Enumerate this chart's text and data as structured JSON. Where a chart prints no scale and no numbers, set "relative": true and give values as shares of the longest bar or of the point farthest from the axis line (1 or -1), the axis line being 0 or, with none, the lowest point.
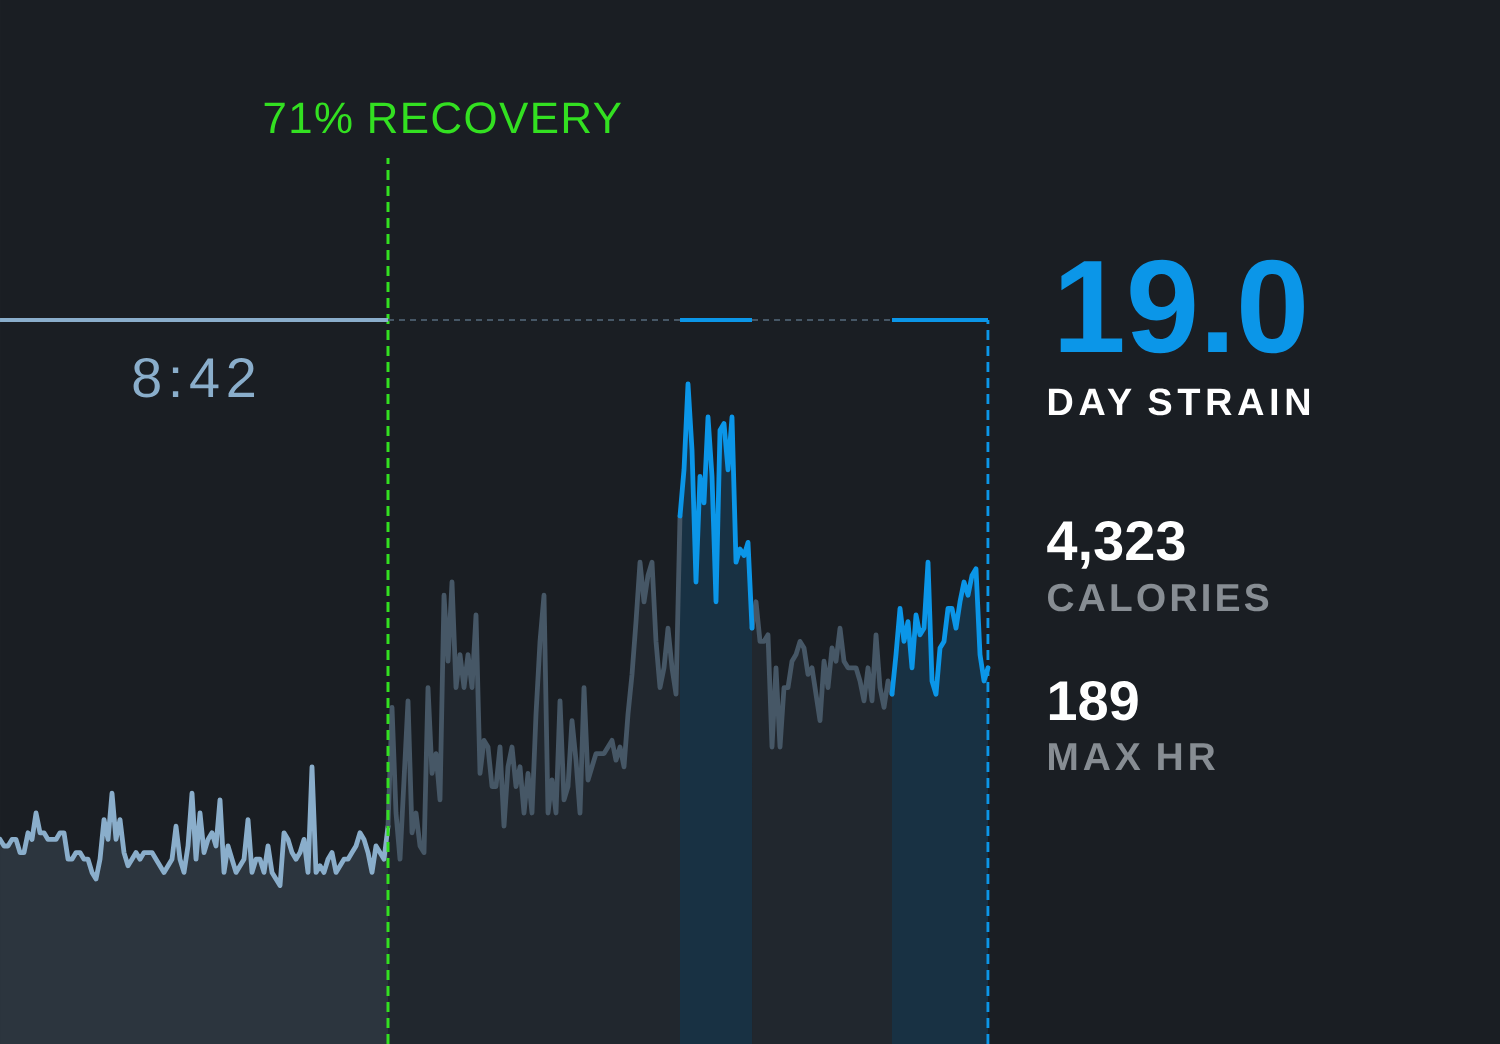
{
  "chart_data": [
    {
      "type": "area",
      "relative": true,
      "categories": [
        null,
        null,
        null,
        null,
        null,
        null,
        null,
        null,
        null,
        null,
        null,
        null,
        null,
        null,
        null,
        null,
        null,
        null,
        null,
        null,
        null,
        null,
        null,
        null,
        null,
        null,
        null,
        null,
        null,
        null,
        null,
        null,
        null,
        null,
        null,
        null,
        null,
        null,
        null,
        null,
        null,
        null,
        null,
        null,
        null,
        null,
        null,
        null,
        null,
        null,
        null,
        null,
        null,
        null,
        null,
        null,
        null,
        null,
        null,
        null,
        null,
        null,
        null,
        null,
        null,
        null,
        null,
        null,
        null,
        null,
        null,
        null,
        null,
        null,
        null,
        null,
        null,
        null,
        null,
        null,
        null,
        null,
        null,
        null,
        null,
        null,
        null,
        null,
        null,
        null,
        null,
        null,
        null,
        null,
        null,
        null,
        null,
        null,
        null,
        null,
        null,
        null,
        null,
        null,
        null,
        null,
        null,
        null,
        null,
        null,
        null,
        null,
        null,
        null,
        null,
        null,
        null,
        null,
        null,
        null,
        null,
        null,
        null,
        null,
        null,
        null,
        null,
        null,
        null,
        null,
        null,
        null,
        null,
        null,
        null,
        null,
        null,
        null,
        null,
        null,
        null,
        null,
        null,
        null,
        null,
        null,
        null,
        null,
        null,
        null,
        null,
        null,
        null,
        null,
        null,
        null,
        null,
        null,
        null,
        null,
        null,
        null,
        null,
        null,
        null,
        null,
        null,
        null,
        null,
        null,
        null,
        null,
        null,
        null,
        null,
        null,
        null,
        null,
        null,
        null,
        null,
        null,
        null,
        null,
        null,
        null,
        null,
        null,
        null,
        null,
        null,
        null,
        null,
        null,
        null,
        null,
        null,
        null,
        null,
        null,
        null,
        null,
        null,
        null,
        null,
        null,
        null,
        null,
        null,
        null,
        null,
        null,
        null,
        null,
        null,
        null,
        null,
        null,
        null,
        null,
        null,
        null,
        null,
        null,
        null,
        null,
        null,
        null,
        null,
        null,
        null,
        null,
        null,
        null,
        null,
        null,
        null,
        null,
        null,
        null,
        null,
        null,
        null,
        null,
        null,
        null,
        null,
        null
      ],
      "series": [
        {
          "color": "#8aaecb",
          "values": [
            0.31,
            0.3,
            0.3,
            0.31,
            0.31,
            0.29,
            0.29,
            0.32,
            0.31,
            0.35,
            0.32,
            0.32,
            0.31,
            0.31,
            0.31,
            0.32,
            0.32,
            0.28,
            0.28,
            0.29,
            0.29,
            0.28,
            0.28,
            0.26,
            0.25,
            0.28,
            0.34,
            0.31,
            0.38,
            0.31,
            0.34,
            0.29,
            0.27,
            0.28,
            0.29,
            0.28,
            0.29,
            0.29,
            0.29,
            0.28,
            0.27,
            0.26,
            0.27,
            0.28,
            0.33,
            0.28,
            0.26,
            0.3,
            0.38,
            0.28,
            0.35,
            0.29,
            0.31,
            0.32,
            0.3,
            0.37,
            0.26,
            0.3,
            0.28,
            0.26,
            0.27,
            0.28,
            0.34,
            0.26,
            0.28,
            0.28,
            0.26,
            0.3,
            0.26,
            0.25,
            0.24,
            0.32,
            0.31,
            0.29,
            0.28,
            0.29,
            0.31,
            0.26,
            0.42,
            0.26,
            0.27,
            0.26,
            0.28,
            0.29,
            0.26,
            0.27,
            0.28,
            0.28,
            0.29,
            0.3,
            0.32,
            0.31,
            0.29,
            0.26,
            0.3,
            0.29,
            0.28,
            0.33,
            null,
            null,
            null,
            null,
            null,
            null,
            null,
            null,
            null,
            null,
            null,
            null,
            null,
            null,
            null,
            null,
            null,
            null,
            null,
            null,
            null,
            null,
            null,
            null,
            null,
            null,
            null,
            null,
            null,
            null,
            null,
            null,
            null,
            null,
            null,
            null,
            null,
            null,
            null,
            null,
            null,
            null,
            null,
            null,
            null,
            null,
            null,
            null,
            null,
            null,
            null,
            null,
            null,
            null,
            null,
            null,
            null,
            null,
            null,
            null,
            null,
            null,
            null,
            null,
            null,
            null,
            null,
            null,
            null,
            null,
            null,
            null,
            null,
            null,
            null,
            null,
            null,
            null,
            null,
            null,
            null,
            null,
            null,
            null,
            null,
            null,
            null,
            null,
            null,
            null,
            null,
            null,
            null,
            null,
            null,
            null,
            null,
            null,
            null,
            null,
            null,
            null,
            null,
            null,
            null,
            null,
            null,
            null,
            null,
            null,
            null,
            null,
            null,
            null,
            null,
            null,
            null,
            null,
            null,
            null,
            null,
            null,
            null,
            null,
            null,
            null,
            null,
            null,
            null,
            null,
            null,
            null,
            null,
            null,
            null,
            null,
            null,
            null,
            null,
            null,
            null,
            null,
            null,
            null,
            null,
            null,
            null,
            null,
            null,
            null
          ]
        },
        {
          "color": "#465766",
          "values": [
            null,
            null,
            null,
            null,
            null,
            null,
            null,
            null,
            null,
            null,
            null,
            null,
            null,
            null,
            null,
            null,
            null,
            null,
            null,
            null,
            null,
            null,
            null,
            null,
            null,
            null,
            null,
            null,
            null,
            null,
            null,
            null,
            null,
            null,
            null,
            null,
            null,
            null,
            null,
            null,
            null,
            null,
            null,
            null,
            null,
            null,
            null,
            null,
            null,
            null,
            null,
            null,
            null,
            null,
            null,
            null,
            null,
            null,
            null,
            null,
            null,
            null,
            null,
            null,
            null,
            null,
            null,
            null,
            null,
            null,
            null,
            null,
            null,
            null,
            null,
            null,
            null,
            null,
            null,
            null,
            null,
            null,
            null,
            null,
            null,
            null,
            null,
            null,
            null,
            null,
            null,
            null,
            null,
            null,
            null,
            null,
            null,
            0.33,
            0.51,
            0.35,
            0.28,
            0.4,
            0.52,
            0.32,
            0.35,
            0.3,
            0.29,
            0.54,
            0.41,
            0.44,
            0.37,
            0.68,
            0.58,
            0.7,
            0.54,
            0.59,
            0.54,
            0.59,
            0.54,
            0.65,
            0.41,
            0.46,
            0.45,
            0.39,
            0.39,
            0.45,
            0.33,
            0.42,
            0.45,
            0.39,
            0.42,
            0.35,
            0.41,
            0.35,
            0.5,
            0.61,
            0.68,
            0.35,
            0.4,
            0.35,
            0.52,
            0.37,
            0.39,
            0.49,
            0.43,
            0.35,
            0.54,
            0.4,
            0.42,
            0.44,
            0.44,
            0.44,
            0.45,
            0.46,
            0.43,
            0.45,
            0.42,
            0.5,
            0.56,
            0.64,
            0.73,
            0.67,
            0.71,
            0.73,
            0.61,
            0.54,
            0.57,
            0.63,
            0.57,
            0.53,
            0.8,
            null,
            null,
            null,
            null,
            null,
            null,
            null,
            null,
            null,
            null,
            null,
            null,
            null,
            null,
            null,
            null,
            null,
            0.63,
            0.67,
            0.61,
            0.61,
            0.62,
            0.45,
            0.57,
            0.45,
            0.54,
            0.54,
            0.58,
            0.59,
            0.61,
            0.6,
            0.56,
            0.57,
            0.53,
            0.49,
            0.58,
            0.54,
            0.6,
            0.58,
            0.63,
            0.58,
            0.57,
            0.57,
            0.57,
            0.55,
            0.52,
            0.57,
            0.52,
            0.62,
            0.54,
            0.51,
            0.55,
            0.53,
            null,
            null,
            null,
            null,
            null,
            null,
            null,
            null,
            null,
            null,
            null,
            null,
            null,
            null,
            null,
            null,
            null,
            null,
            null,
            null,
            null,
            null,
            null,
            null
          ]
        },
        {
          "color": "#0b96e8",
          "values": [
            null,
            null,
            null,
            null,
            null,
            null,
            null,
            null,
            null,
            null,
            null,
            null,
            null,
            null,
            null,
            null,
            null,
            null,
            null,
            null,
            null,
            null,
            null,
            null,
            null,
            null,
            null,
            null,
            null,
            null,
            null,
            null,
            null,
            null,
            null,
            null,
            null,
            null,
            null,
            null,
            null,
            null,
            null,
            null,
            null,
            null,
            null,
            null,
            null,
            null,
            null,
            null,
            null,
            null,
            null,
            null,
            null,
            null,
            null,
            null,
            null,
            null,
            null,
            null,
            null,
            null,
            null,
            null,
            null,
            null,
            null,
            null,
            null,
            null,
            null,
            null,
            null,
            null,
            null,
            null,
            null,
            null,
            null,
            null,
            null,
            null,
            null,
            null,
            null,
            null,
            null,
            null,
            null,
            null,
            null,
            null,
            null,
            null,
            null,
            null,
            null,
            null,
            null,
            null,
            null,
            null,
            null,
            null,
            null,
            null,
            null,
            null,
            null,
            null,
            null,
            null,
            null,
            null,
            null,
            null,
            null,
            null,
            null,
            null,
            null,
            null,
            null,
            null,
            null,
            null,
            null,
            null,
            null,
            null,
            null,
            null,
            null,
            null,
            null,
            null,
            null,
            null,
            null,
            null,
            null,
            null,
            null,
            null,
            null,
            null,
            null,
            null,
            null,
            null,
            null,
            null,
            null,
            null,
            null,
            null,
            null,
            null,
            null,
            null,
            null,
            null,
            null,
            null,
            null,
            null,
            0.8,
            0.87,
            1,
            0.9,
            0.7,
            0.86,
            0.82,
            0.95,
            0.86,
            0.67,
            0.93,
            0.94,
            0.87,
            0.95,
            0.73,
            0.75,
            0.74,
            0.76,
            0.63,
            null,
            null,
            null,
            null,
            null,
            null,
            null,
            null,
            null,
            null,
            null,
            null,
            null,
            null,
            null,
            null,
            null,
            null,
            null,
            null,
            null,
            null,
            null,
            null,
            null,
            null,
            null,
            null,
            null,
            null,
            null,
            null,
            null,
            null,
            0.53,
            0.59,
            0.66,
            0.61,
            0.64,
            0.57,
            0.65,
            0.62,
            0.63,
            0.73,
            0.55,
            0.53,
            0.6,
            0.61,
            0.66,
            0.66,
            0.63,
            0.67,
            0.7,
            0.68,
            0.71,
            0.72,
            0.59,
            0.55,
            0.57
          ]
        }
      ],
      "annotations": [
        "71% RECOVERY",
        "8:42"
      ]
    },
    {
      "type": "other",
      "annotations": [
        "19.0",
        "DAY STRAIN",
        "4,323",
        "CALORIES",
        "189",
        "MAX HR"
      ]
    }
  ]
}
